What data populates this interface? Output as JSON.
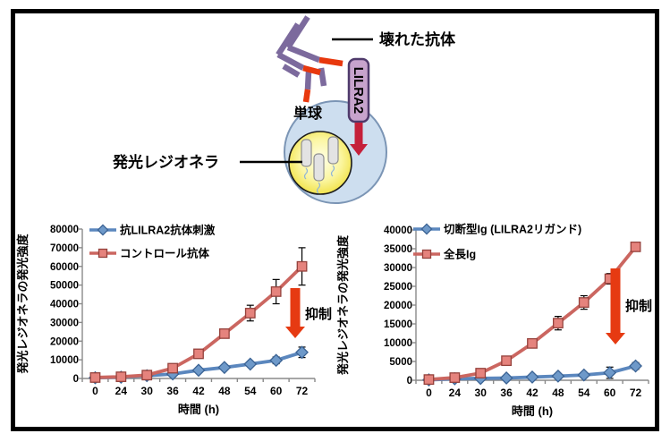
{
  "figure": {
    "diagram": {
      "broken_antibody_label": "壊れた抗体",
      "receptor_label": "LILRA2",
      "cell_label": "単球",
      "bacteria_label": "発光レジオネラ"
    }
  },
  "colors": {
    "suppression_arrow": "#E63A12",
    "diagram_arrow": "#C5203A",
    "antibody_purple": "#7C6A9D",
    "antibody_tip_red": "#E8380D",
    "receptor_box_fill": "#C7A3CC",
    "receptor_box_edge": "#4F3A6B",
    "cell_fill": "#CDDEEF",
    "cell_edge": "#7B95B5",
    "axis_gray": "#8A8A8A"
  },
  "chart_data": [
    {
      "type": "line",
      "title": "",
      "xlabel": "時間 (h)",
      "ylabel": "発光レジオネラの発光強度",
      "categories": [
        "0",
        "24",
        "30",
        "36",
        "42",
        "48",
        "54",
        "60",
        "72"
      ],
      "ylim": [
        0,
        80000
      ],
      "ystep": 10000,
      "grid": false,
      "legend_position": "top-left-inside",
      "annotation": "抑制",
      "series": [
        {
          "name": "抗LILRA2抗体刺激",
          "marker": "diamond",
          "color": "#5B87BE",
          "marker_fill": "#6E99C9",
          "marker_edge": "#3B6394",
          "values": [
            400,
            700,
            1500,
            2400,
            4400,
            5900,
            7700,
            9700,
            14000
          ],
          "errors": [
            0,
            0,
            0,
            0,
            0,
            0,
            0,
            1800,
            2800
          ]
        },
        {
          "name": "コントロール抗体",
          "marker": "square",
          "color": "#CB6660",
          "marker_fill": "#E5837D",
          "marker_edge": "#95423C",
          "values": [
            500,
            900,
            1800,
            5500,
            13200,
            24000,
            35000,
            46500,
            60000
          ],
          "errors": [
            0,
            0,
            0,
            0,
            0,
            0,
            4200,
            6500,
            10000
          ]
        }
      ]
    },
    {
      "type": "line",
      "title": "",
      "xlabel": "時間 (h)",
      "ylabel": "発光レジオネラの発光強度",
      "categories": [
        "0",
        "24",
        "30",
        "36",
        "42",
        "48",
        "54",
        "60",
        "72"
      ],
      "ylim": [
        0,
        40000
      ],
      "ystep": 5000,
      "grid": false,
      "legend_position": "top-left-inside",
      "annotation": "抑制",
      "series": [
        {
          "name": "切断型Ig (LILRA2リガンド)",
          "marker": "diamond",
          "color": "#5B87BE",
          "marker_fill": "#6E99C9",
          "marker_edge": "#3B6394",
          "values": [
            100,
            400,
            500,
            600,
            850,
            1100,
            1400,
            2000,
            3800
          ],
          "errors": [
            0,
            0,
            0,
            0,
            0,
            0,
            400,
            1500,
            900
          ]
        },
        {
          "name": "全長Ig",
          "marker": "square",
          "color": "#CB6660",
          "marker_fill": "#E5837D",
          "marker_edge": "#95423C",
          "values": [
            200,
            700,
            1900,
            5200,
            9800,
            15200,
            20700,
            27000,
            35500
          ],
          "errors": [
            0,
            0,
            0,
            600,
            800,
            1800,
            1800,
            1400,
            0
          ]
        }
      ]
    }
  ]
}
